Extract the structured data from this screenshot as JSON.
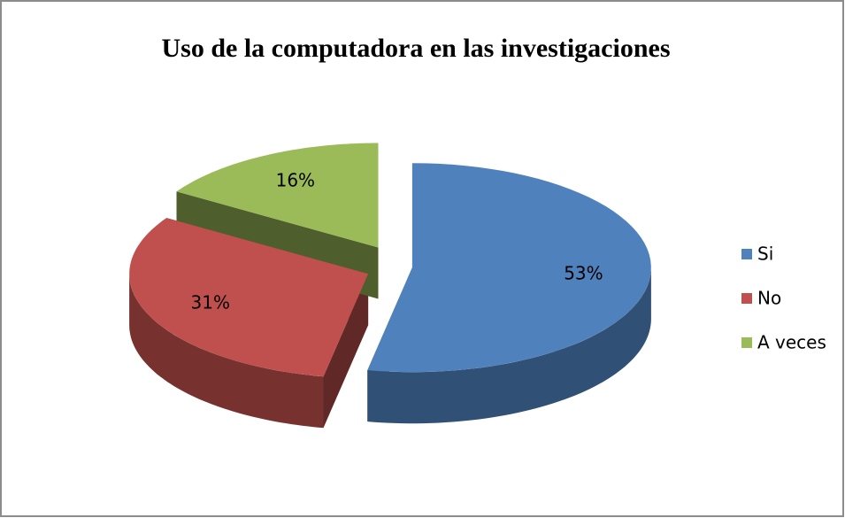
{
  "chart_data": {
    "type": "pie",
    "title": "Uso de la computadora en las investigaciones",
    "categories": [
      "Si",
      "No",
      "A veces"
    ],
    "values": [
      53,
      31,
      16
    ],
    "value_labels": [
      "53%",
      "31%",
      "16%"
    ],
    "colors": [
      "#4f81bd",
      "#c0504d",
      "#9bbb59"
    ],
    "legend": "right"
  }
}
